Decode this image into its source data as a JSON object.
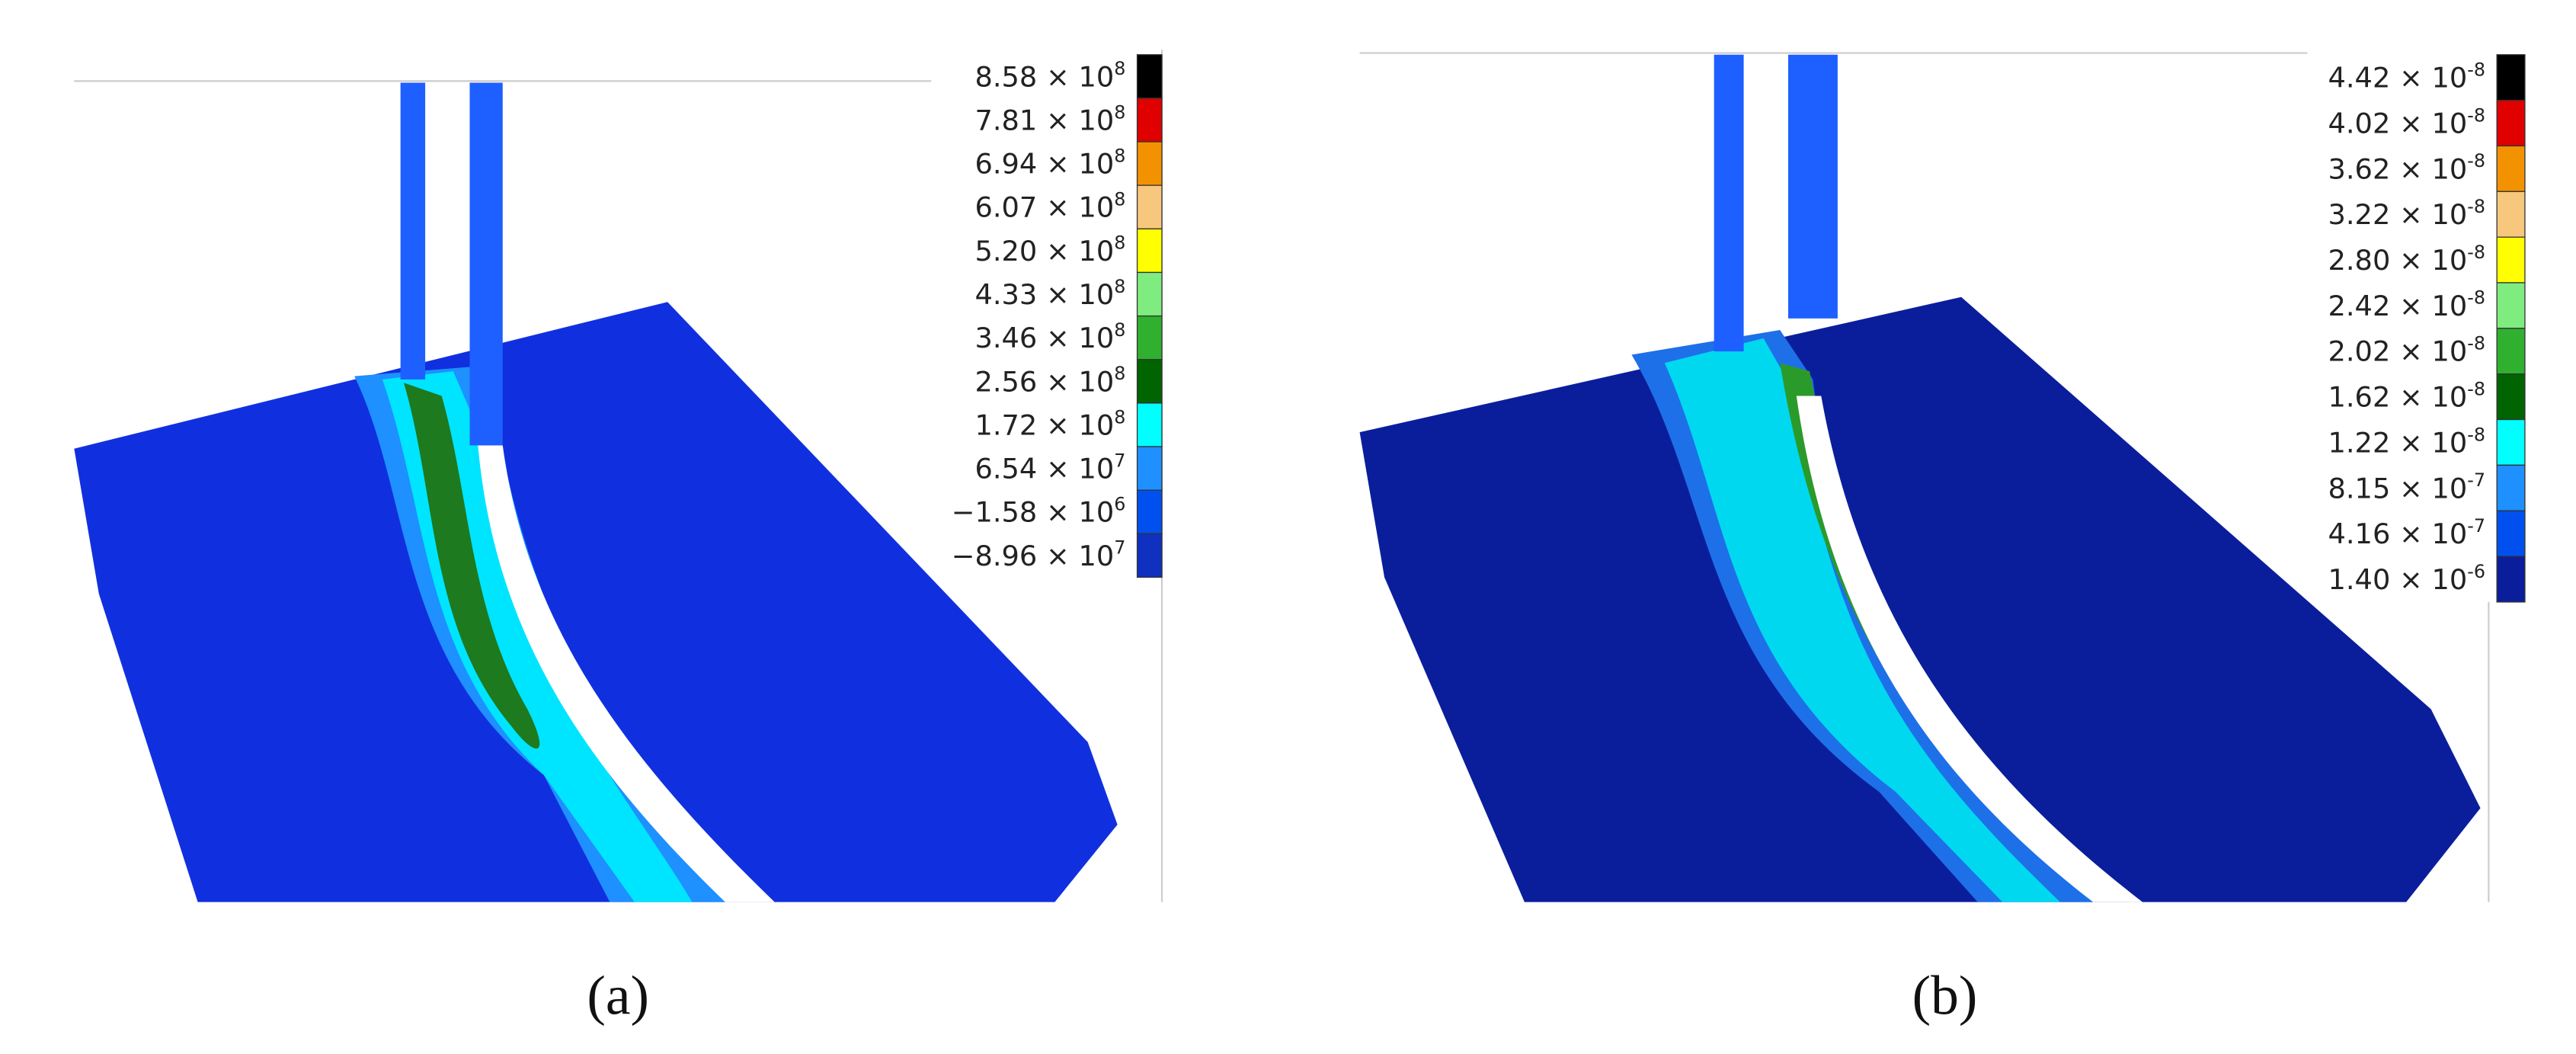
{
  "panels": [
    {
      "caption": "(a)",
      "legend": [
        {
          "base": "8.58 × 10",
          "exp": "8",
          "color": "#000000"
        },
        {
          "base": "7.81 × 10",
          "exp": "8",
          "color": "#e00000"
        },
        {
          "base": "6.94 × 10",
          "exp": "8",
          "color": "#f39200"
        },
        {
          "base": "6.07 × 10",
          "exp": "8",
          "color": "#f7c77e"
        },
        {
          "base": "5.20 × 10",
          "exp": "8",
          "color": "#ffff00"
        },
        {
          "base": "4.33 × 10",
          "exp": "8",
          "color": "#7fec7f"
        },
        {
          "base": "3.46 × 10",
          "exp": "8",
          "color": "#2fb02f"
        },
        {
          "base": "2.56 × 10",
          "exp": "8",
          "color": "#006400"
        },
        {
          "base": "1.72 × 10",
          "exp": "8",
          "color": "#00ffff"
        },
        {
          "base": "6.54 × 10",
          "exp": "7",
          "color": "#1e90ff"
        },
        {
          "base": "−1.58 × 10",
          "exp": "6",
          "color": "#0050f0"
        },
        {
          "base": "−8.96 × 10",
          "exp": "7",
          "color": "#1030c0"
        }
      ]
    },
    {
      "caption": "(b)",
      "legend": [
        {
          "base": "4.42 × 10",
          "exp": "-8",
          "color": "#000000"
        },
        {
          "base": "4.02 × 10",
          "exp": "-8",
          "color": "#e00000"
        },
        {
          "base": "3.62 × 10",
          "exp": "-8",
          "color": "#f39200"
        },
        {
          "base": "3.22 × 10",
          "exp": "-8",
          "color": "#f7c77e"
        },
        {
          "base": "2.80 × 10",
          "exp": "-8",
          "color": "#ffff00"
        },
        {
          "base": "2.42 × 10",
          "exp": "-8",
          "color": "#7fec7f"
        },
        {
          "base": "2.02 × 10",
          "exp": "-8",
          "color": "#2fb02f"
        },
        {
          "base": "1.62 × 10",
          "exp": "-8",
          "color": "#006400"
        },
        {
          "base": "1.22 × 10",
          "exp": "-8",
          "color": "#00ffff"
        },
        {
          "base": "8.15 × 10",
          "exp": "-7",
          "color": "#1e90ff"
        },
        {
          "base": "4.16 × 10",
          "exp": "-7",
          "color": "#0050f0"
        },
        {
          "base": "1.40 × 10",
          "exp": "-6",
          "color": "#0a1e9c"
        }
      ]
    }
  ]
}
